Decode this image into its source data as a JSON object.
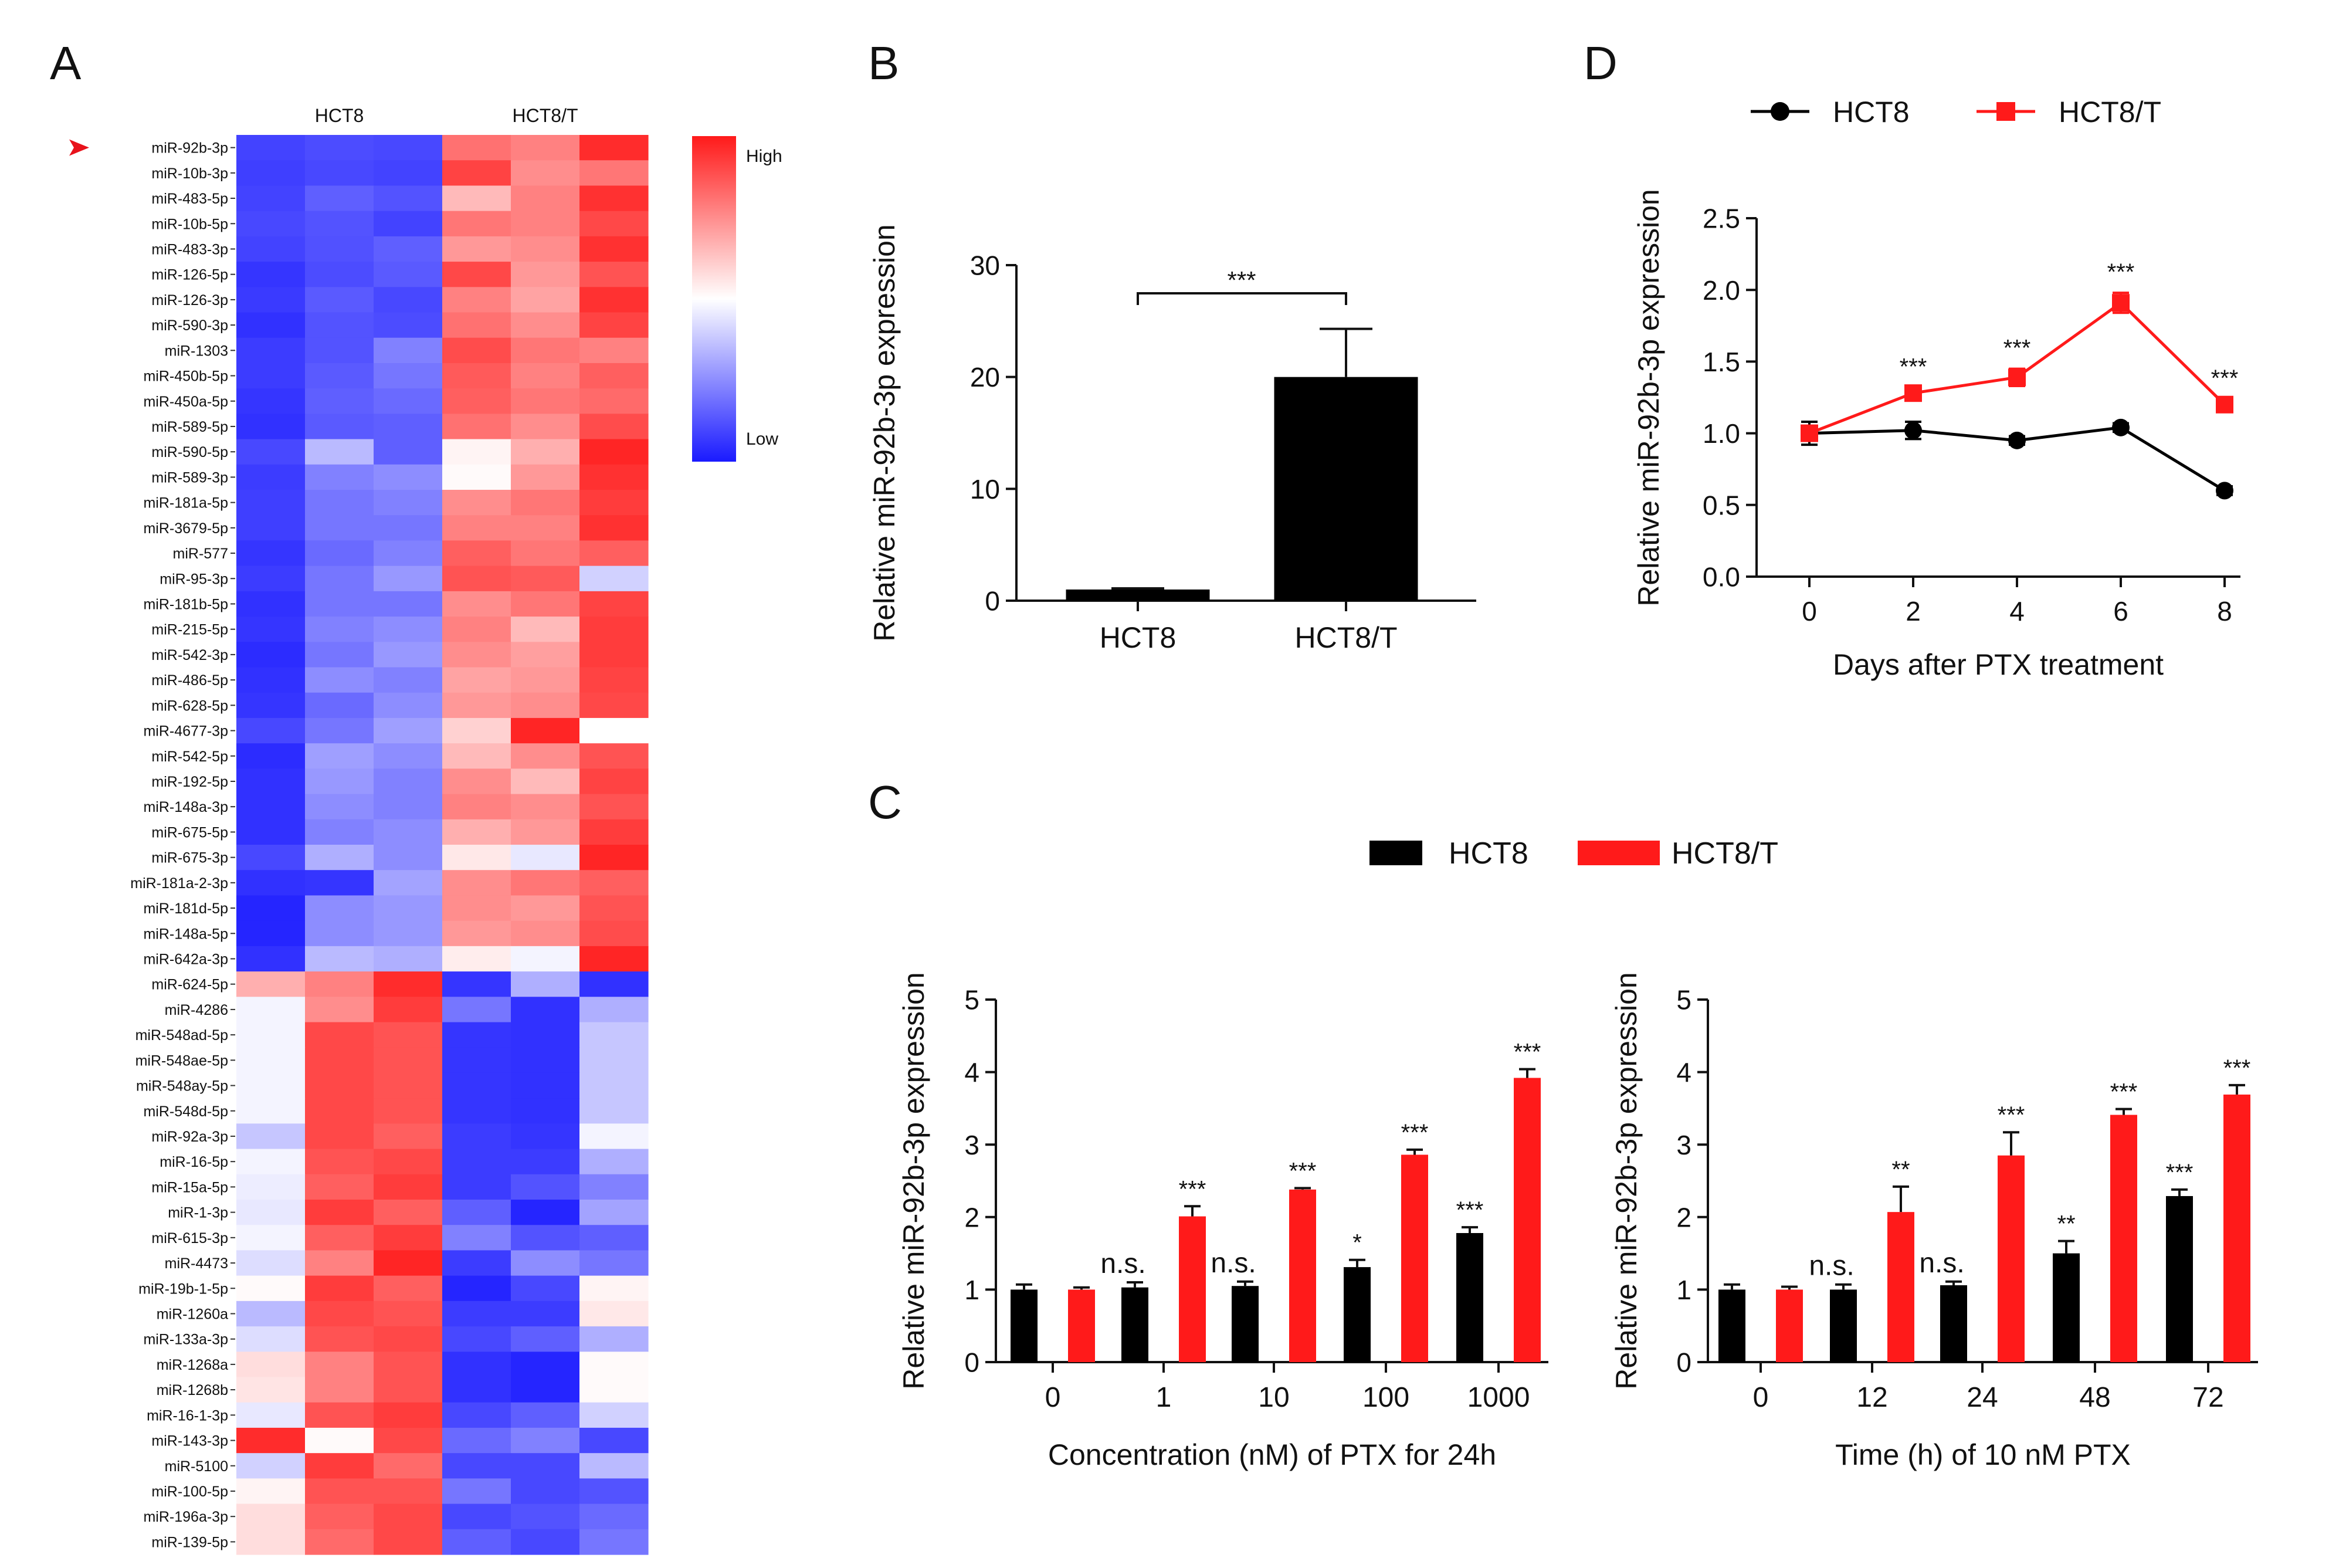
{
  "panel_labels": {
    "a": "A",
    "b": "B",
    "c": "C",
    "d": "D"
  },
  "colors": {
    "hct8": "#000000",
    "hct8t": "#ff1a1a",
    "high": "#ff1a1a",
    "mid": "#ffffff",
    "low": "#1a1aff",
    "marker": "#e8121b"
  },
  "chart_data": [
    {
      "panel": "A",
      "type": "heatmap",
      "groups": [
        "HCT8",
        "HCT8/T"
      ],
      "legend": {
        "high": "High",
        "low": "Low"
      },
      "highlighted_row": "miR-92b-3p",
      "rows": [
        {
          "label": "miR-92b-3p",
          "values": [
            -0.82,
            -0.78,
            -0.8,
            0.62,
            0.55,
            0.92
          ]
        },
        {
          "label": "miR-10b-3p",
          "values": [
            -0.84,
            -0.8,
            -0.82,
            0.82,
            0.5,
            0.6
          ]
        },
        {
          "label": "miR-483-5p",
          "values": [
            -0.82,
            -0.7,
            -0.75,
            0.3,
            0.55,
            0.9
          ]
        },
        {
          "label": "miR-10b-5p",
          "values": [
            -0.8,
            -0.75,
            -0.82,
            0.6,
            0.55,
            0.8
          ]
        },
        {
          "label": "miR-483-3p",
          "values": [
            -0.82,
            -0.76,
            -0.7,
            0.45,
            0.5,
            0.9
          ]
        },
        {
          "label": "miR-126-5p",
          "values": [
            -0.88,
            -0.78,
            -0.72,
            0.8,
            0.45,
            0.75
          ]
        },
        {
          "label": "miR-126-3p",
          "values": [
            -0.86,
            -0.72,
            -0.8,
            0.55,
            0.4,
            0.9
          ]
        },
        {
          "label": "miR-590-3p",
          "values": [
            -0.9,
            -0.75,
            -0.78,
            0.62,
            0.5,
            0.82
          ]
        },
        {
          "label": "miR-1303",
          "values": [
            -0.85,
            -0.75,
            -0.55,
            0.78,
            0.6,
            0.55
          ]
        },
        {
          "label": "miR-450b-5p",
          "values": [
            -0.85,
            -0.72,
            -0.6,
            0.72,
            0.55,
            0.7
          ]
        },
        {
          "label": "miR-450a-5p",
          "values": [
            -0.88,
            -0.7,
            -0.65,
            0.7,
            0.6,
            0.65
          ]
        },
        {
          "label": "miR-589-5p",
          "values": [
            -0.9,
            -0.72,
            -0.7,
            0.62,
            0.5,
            0.78
          ]
        },
        {
          "label": "miR-590-5p",
          "values": [
            -0.8,
            -0.3,
            -0.7,
            0.05,
            0.35,
            0.95
          ]
        },
        {
          "label": "miR-589-3p",
          "values": [
            -0.85,
            -0.55,
            -0.5,
            0.02,
            0.45,
            0.9
          ]
        },
        {
          "label": "miR-181a-5p",
          "values": [
            -0.84,
            -0.6,
            -0.55,
            0.5,
            0.6,
            0.85
          ]
        },
        {
          "label": "miR-3679-5p",
          "values": [
            -0.84,
            -0.6,
            -0.6,
            0.55,
            0.55,
            0.9
          ]
        },
        {
          "label": "miR-577",
          "values": [
            -0.88,
            -0.65,
            -0.55,
            0.7,
            0.6,
            0.7
          ]
        },
        {
          "label": "miR-95-3p",
          "values": [
            -0.85,
            -0.6,
            -0.45,
            0.75,
            0.72,
            -0.2
          ]
        },
        {
          "label": "miR-181b-5p",
          "values": [
            -0.9,
            -0.6,
            -0.6,
            0.5,
            0.6,
            0.82
          ]
        },
        {
          "label": "miR-215-5p",
          "values": [
            -0.88,
            -0.55,
            -0.5,
            0.55,
            0.3,
            0.85
          ]
        },
        {
          "label": "miR-542-3p",
          "values": [
            -0.92,
            -0.6,
            -0.45,
            0.5,
            0.42,
            0.85
          ]
        },
        {
          "label": "miR-486-5p",
          "values": [
            -0.9,
            -0.5,
            -0.55,
            0.4,
            0.45,
            0.82
          ]
        },
        {
          "label": "miR-628-5p",
          "values": [
            -0.88,
            -0.65,
            -0.5,
            0.45,
            0.5,
            0.8
          ]
        },
        {
          "label": "miR-4677-3p",
          "values": [
            -0.8,
            -0.6,
            -0.42,
            0.2,
            0.95,
            0.0
          ]
        },
        {
          "label": "miR-542-5p",
          "values": [
            -0.92,
            -0.42,
            -0.5,
            0.3,
            0.5,
            0.75
          ]
        },
        {
          "label": "miR-192-5p",
          "values": [
            -0.9,
            -0.45,
            -0.55,
            0.5,
            0.3,
            0.82
          ]
        },
        {
          "label": "miR-148a-3p",
          "values": [
            -0.9,
            -0.5,
            -0.55,
            0.55,
            0.5,
            0.75
          ]
        },
        {
          "label": "miR-675-5p",
          "values": [
            -0.9,
            -0.55,
            -0.5,
            0.35,
            0.45,
            0.85
          ]
        },
        {
          "label": "miR-675-3p",
          "values": [
            -0.8,
            -0.35,
            -0.5,
            0.1,
            -0.1,
            0.95
          ]
        },
        {
          "label": "miR-181a-2-3p",
          "values": [
            -0.9,
            -0.88,
            -0.4,
            0.5,
            0.6,
            0.7
          ]
        },
        {
          "label": "miR-181d-5p",
          "values": [
            -0.95,
            -0.5,
            -0.45,
            0.5,
            0.45,
            0.75
          ]
        },
        {
          "label": "miR-148a-5p",
          "values": [
            -0.95,
            -0.5,
            -0.45,
            0.45,
            0.5,
            0.78
          ]
        },
        {
          "label": "miR-642a-3p",
          "values": [
            -0.9,
            -0.3,
            -0.35,
            0.08,
            -0.05,
            0.95
          ]
        },
        {
          "label": "miR-624-5p",
          "values": [
            0.35,
            0.55,
            0.92,
            -0.88,
            -0.35,
            -0.9
          ]
        },
        {
          "label": "miR-4286",
          "values": [
            -0.05,
            0.5,
            0.85,
            -0.6,
            -0.9,
            -0.35
          ]
        },
        {
          "label": "miR-548ad-5p",
          "values": [
            -0.05,
            0.8,
            0.75,
            -0.88,
            -0.9,
            -0.25
          ]
        },
        {
          "label": "miR-548ae-5p",
          "values": [
            -0.05,
            0.8,
            0.75,
            -0.88,
            -0.9,
            -0.25
          ]
        },
        {
          "label": "miR-548ay-5p",
          "values": [
            -0.05,
            0.8,
            0.75,
            -0.88,
            -0.9,
            -0.25
          ]
        },
        {
          "label": "miR-548d-5p",
          "values": [
            -0.05,
            0.8,
            0.75,
            -0.88,
            -0.9,
            -0.25
          ]
        },
        {
          "label": "miR-92a-3p",
          "values": [
            -0.25,
            0.8,
            0.7,
            -0.85,
            -0.88,
            -0.05
          ]
        },
        {
          "label": "miR-16-5p",
          "values": [
            -0.05,
            0.75,
            0.8,
            -0.85,
            -0.85,
            -0.35
          ]
        },
        {
          "label": "miR-15a-5p",
          "values": [
            -0.08,
            0.7,
            0.85,
            -0.85,
            -0.75,
            -0.55
          ]
        },
        {
          "label": "miR-1-3p",
          "values": [
            -0.1,
            0.85,
            0.7,
            -0.7,
            -0.95,
            -0.4
          ]
        },
        {
          "label": "miR-615-3p",
          "values": [
            -0.05,
            0.7,
            0.85,
            -0.55,
            -0.75,
            -0.7
          ]
        },
        {
          "label": "miR-4473",
          "values": [
            -0.15,
            0.55,
            0.95,
            -0.85,
            -0.5,
            -0.6
          ]
        },
        {
          "label": "miR-19b-1-5p",
          "values": [
            0.02,
            0.85,
            0.7,
            -0.95,
            -0.8,
            0.05
          ]
        },
        {
          "label": "miR-1260a",
          "values": [
            -0.3,
            0.8,
            0.75,
            -0.85,
            -0.85,
            0.1
          ]
        },
        {
          "label": "miR-133a-3p",
          "values": [
            -0.15,
            0.75,
            0.8,
            -0.8,
            -0.7,
            -0.35
          ]
        },
        {
          "label": "miR-1268a",
          "values": [
            0.15,
            0.55,
            0.75,
            -0.9,
            -0.95,
            0.02
          ]
        },
        {
          "label": "miR-1268b",
          "values": [
            0.12,
            0.55,
            0.75,
            -0.9,
            -0.95,
            0.02
          ]
        },
        {
          "label": "miR-16-1-3p",
          "values": [
            -0.1,
            0.75,
            0.85,
            -0.8,
            -0.7,
            -0.2
          ]
        },
        {
          "label": "miR-143-3p",
          "values": [
            0.92,
            0.02,
            0.8,
            -0.65,
            -0.55,
            -0.8
          ]
        },
        {
          "label": "miR-5100",
          "values": [
            -0.2,
            0.85,
            0.65,
            -0.8,
            -0.8,
            -0.3
          ]
        },
        {
          "label": "miR-100-5p",
          "values": [
            0.05,
            0.75,
            0.75,
            -0.6,
            -0.8,
            -0.75
          ]
        },
        {
          "label": "miR-196a-3p",
          "values": [
            0.15,
            0.7,
            0.8,
            -0.8,
            -0.75,
            -0.65
          ]
        },
        {
          "label": "miR-139-5p",
          "values": [
            0.15,
            0.65,
            0.8,
            -0.7,
            -0.8,
            -0.6
          ]
        }
      ]
    },
    {
      "panel": "B",
      "type": "bar",
      "categories": [
        "HCT8",
        "HCT8/T"
      ],
      "values": [
        1.0,
        20.0
      ],
      "errors": [
        0.1,
        4.3
      ],
      "ylabel": "Relative miR-92b-3p expression",
      "xlabel": "",
      "ylim": [
        0,
        30
      ],
      "yticks": [
        "0",
        "10",
        "20",
        "30"
      ],
      "significance": "***"
    },
    {
      "panel": "D",
      "type": "line",
      "x": [
        0,
        2,
        4,
        6,
        8
      ],
      "xticks": [
        "0",
        "2",
        "4",
        "6",
        "8"
      ],
      "xlabel": "Days after PTX treatment",
      "ylabel": "Relative miR-92b-3p expression",
      "ylim": [
        0,
        2.5
      ],
      "yticks": [
        "0.0",
        "0.5",
        "1.0",
        "1.5",
        "2.0",
        "2.5"
      ],
      "legend": [
        "HCT8",
        "HCT8/T"
      ],
      "series": [
        {
          "name": "HCT8",
          "values": [
            1.0,
            1.02,
            0.95,
            1.04,
            0.6
          ],
          "errors": [
            0.08,
            0.06,
            0.03,
            0.03,
            0.03
          ]
        },
        {
          "name": "HCT8/T",
          "values": [
            1.0,
            1.28,
            1.39,
            1.91,
            1.2
          ],
          "errors": [
            0.05,
            0.04,
            0.06,
            0.07,
            0.04
          ]
        }
      ],
      "annotations": [
        "",
        "***",
        "***",
        "***",
        "***"
      ]
    },
    {
      "panel": "C-left",
      "type": "bar",
      "categories": [
        "0",
        "1",
        "10",
        "100",
        "1000"
      ],
      "xlabel": "Concentration (nM) of PTX for 24h",
      "ylabel": "Relative miR-92b-3p expression",
      "ylim": [
        0,
        5
      ],
      "yticks": [
        "0",
        "1",
        "2",
        "3",
        "4",
        "5"
      ],
      "legend": [
        "HCT8",
        "HCT8/T"
      ],
      "series": [
        {
          "name": "HCT8",
          "values": [
            1.0,
            1.03,
            1.05,
            1.31,
            1.78
          ],
          "errors": [
            0.07,
            0.07,
            0.06,
            0.1,
            0.08
          ],
          "annotations": [
            "",
            "n.s.",
            "n.s.",
            "*",
            "***"
          ]
        },
        {
          "name": "HCT8/T",
          "values": [
            1.0,
            2.01,
            2.38,
            2.86,
            3.92
          ],
          "errors": [
            0.03,
            0.14,
            0.02,
            0.07,
            0.12
          ],
          "annotations": [
            "",
            "***",
            "***",
            "***",
            "***"
          ]
        }
      ]
    },
    {
      "panel": "C-right",
      "type": "bar",
      "categories": [
        "0",
        "12",
        "24",
        "48",
        "72"
      ],
      "xlabel": "Time (h) of 10 nM PTX",
      "ylabel": "Relative miR-92b-3p expression",
      "ylim": [
        0,
        5
      ],
      "yticks": [
        "0",
        "1",
        "2",
        "3",
        "4",
        "5"
      ],
      "legend": [
        "HCT8",
        "HCT8/T"
      ],
      "series": [
        {
          "name": "HCT8",
          "values": [
            1.0,
            1.0,
            1.06,
            1.5,
            2.29
          ],
          "errors": [
            0.07,
            0.07,
            0.05,
            0.17,
            0.09
          ],
          "annotations": [
            "",
            "n.s.",
            "n.s.",
            "**",
            "***"
          ]
        },
        {
          "name": "HCT8/T",
          "values": [
            1.0,
            2.07,
            2.85,
            3.41,
            3.69
          ],
          "errors": [
            0.04,
            0.35,
            0.32,
            0.08,
            0.13
          ],
          "annotations": [
            "",
            "**",
            "***",
            "***",
            "***"
          ]
        }
      ]
    }
  ]
}
